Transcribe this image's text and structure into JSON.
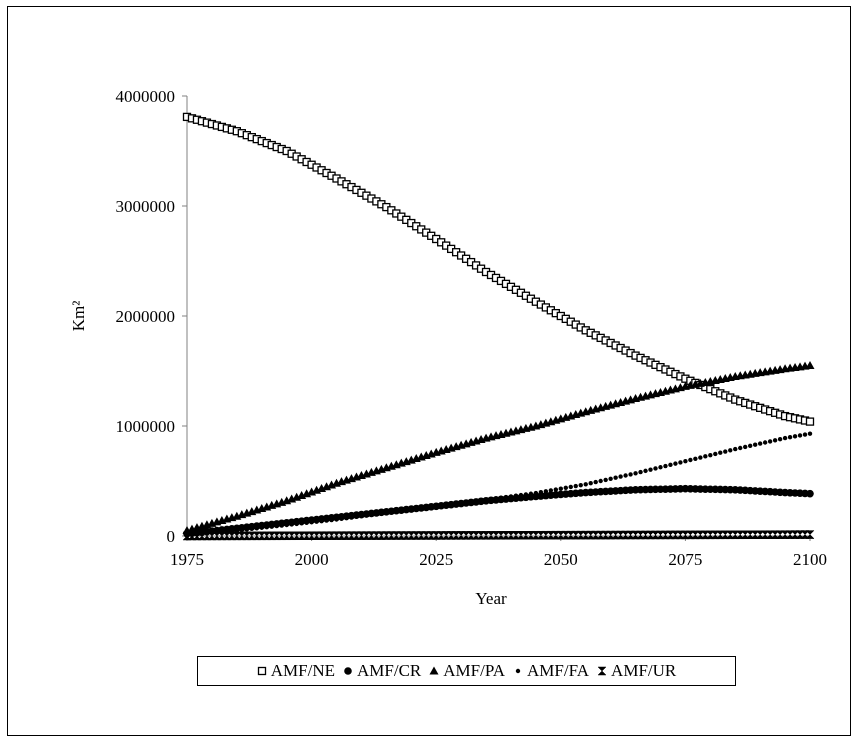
{
  "chart_data": {
    "type": "scatter",
    "xlabel": "Year",
    "ylabel": "Km²",
    "xlim": [
      1975,
      2100
    ],
    "ylim": [
      0,
      4000000
    ],
    "x_ticks": [
      "1975",
      "2000",
      "2025",
      "2050",
      "2075",
      "2100"
    ],
    "y_ticks": [
      "0",
      "1000000",
      "2000000",
      "3000000",
      "4000000"
    ],
    "grid": false,
    "legend": "bottom",
    "series": [
      {
        "name": "AMF/NE",
        "marker": "hollow-square",
        "x": [
          1975,
          1985,
          1995,
          2005,
          2015,
          2025,
          2035,
          2045,
          2055,
          2065,
          2075,
          2085,
          2095,
          2100
        ],
        "y": [
          3810000,
          3680000,
          3500000,
          3250000,
          2990000,
          2700000,
          2400000,
          2130000,
          1870000,
          1640000,
          1430000,
          1240000,
          1090000,
          1040000
        ]
      },
      {
        "name": "AMF/CR",
        "marker": "circle",
        "x": [
          1975,
          1985,
          1995,
          2005,
          2015,
          2025,
          2035,
          2045,
          2055,
          2065,
          2075,
          2085,
          2095,
          2100
        ],
        "y": [
          20000,
          70000,
          120000,
          170000,
          220000,
          270000,
          320000,
          360000,
          395000,
          420000,
          430000,
          420000,
          395000,
          385000
        ]
      },
      {
        "name": "AMF/PA",
        "marker": "triangle",
        "x": [
          1975,
          1985,
          1995,
          2005,
          2015,
          2025,
          2035,
          2045,
          2055,
          2065,
          2075,
          2085,
          2095,
          2100
        ],
        "y": [
          50000,
          180000,
          320000,
          480000,
          620000,
          760000,
          890000,
          1000000,
          1130000,
          1250000,
          1360000,
          1450000,
          1520000,
          1550000
        ]
      },
      {
        "name": "AMF/FA",
        "marker": "small-dot",
        "x": [
          1975,
          1985,
          1995,
          2005,
          2015,
          2025,
          2035,
          2045,
          2055,
          2065,
          2075,
          2085,
          2095,
          2100
        ],
        "y": [
          5000,
          50000,
          100000,
          150000,
          210000,
          270000,
          330000,
          390000,
          470000,
          570000,
          680000,
          790000,
          890000,
          930000
        ]
      },
      {
        "name": "AMF/UR",
        "marker": "bowtie",
        "x": [
          1975,
          1985,
          1995,
          2005,
          2015,
          2025,
          2035,
          2045,
          2055,
          2065,
          2075,
          2085,
          2095,
          2100
        ],
        "y": [
          0,
          1000,
          2000,
          3000,
          4000,
          5000,
          6000,
          7000,
          8000,
          9000,
          10000,
          11000,
          12000,
          13000
        ]
      }
    ]
  }
}
